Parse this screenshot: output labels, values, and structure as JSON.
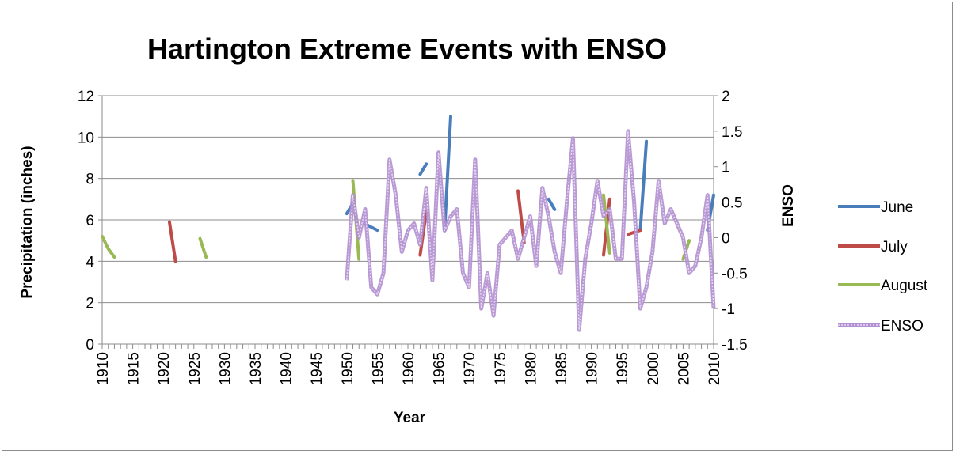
{
  "chart_data": {
    "type": "line",
    "title": "Hartington Extreme Events with ENSO",
    "xlabel": "Year",
    "ylabel_left": "Precipitation (inches)",
    "ylabel_right": "ENSO",
    "xlim": [
      1910,
      2010
    ],
    "ylim_left": [
      0,
      12
    ],
    "ylim_right": [
      -1.5,
      2
    ],
    "x_tick_labels": [
      "1910",
      "1915",
      "1920",
      "1925",
      "1930",
      "1935",
      "1940",
      "1945",
      "1950",
      "1955",
      "1960",
      "1965",
      "1970",
      "1975",
      "1980",
      "1985",
      "1990",
      "1995",
      "2000",
      "2005",
      "2010"
    ],
    "y_left_tick_labels": [
      "0",
      "2",
      "4",
      "6",
      "8",
      "10",
      "12"
    ],
    "y_right_tick_labels": [
      "-1.5",
      "-1",
      "-0.5",
      "0",
      "0.5",
      "1",
      "1.5",
      "2"
    ],
    "grid": "horizontal",
    "legend_position": "right",
    "series": [
      {
        "name": "June",
        "axis": "left",
        "color": "#4a7ebb",
        "segments": [
          [
            [
              1950,
              6.3
            ],
            [
              1951,
              6.8
            ]
          ],
          [
            [
              1953,
              5.8
            ],
            [
              1955,
              5.5
            ]
          ],
          [
            [
              1962,
              8.2
            ],
            [
              1963,
              8.7
            ]
          ],
          [
            [
              1966,
              5.5
            ],
            [
              1967,
              11.0
            ]
          ],
          [
            [
              1983,
              7.0
            ],
            [
              1984,
              6.5
            ]
          ],
          [
            [
              1998,
              5.5
            ],
            [
              1999,
              9.8
            ]
          ],
          [
            [
              2009,
              5.5
            ],
            [
              2010,
              7.2
            ]
          ]
        ]
      },
      {
        "name": "July",
        "axis": "left",
        "color": "#be4b48",
        "segments": [
          [
            [
              1921,
              5.9
            ],
            [
              1922,
              4.0
            ]
          ],
          [
            [
              1962,
              4.3
            ],
            [
              1963,
              6.4
            ]
          ],
          [
            [
              1978,
              7.4
            ],
            [
              1979,
              4.9
            ]
          ],
          [
            [
              1992,
              4.3
            ],
            [
              1993,
              7.0
            ]
          ],
          [
            [
              1996,
              5.3
            ],
            [
              1998,
              5.5
            ]
          ]
        ]
      },
      {
        "name": "August",
        "axis": "left",
        "color": "#98b954",
        "segments": [
          [
            [
              1910,
              5.2
            ],
            [
              1911,
              4.6
            ],
            [
              1912,
              4.2
            ]
          ],
          [
            [
              1926,
              5.1
            ],
            [
              1927,
              4.2
            ]
          ],
          [
            [
              1951,
              7.9
            ],
            [
              1952,
              4.1
            ]
          ],
          [
            [
              1992,
              7.2
            ],
            [
              1993,
              4.4
            ]
          ],
          [
            [
              2005,
              4.1
            ],
            [
              2006,
              5.0
            ]
          ]
        ]
      },
      {
        "name": "ENSO",
        "axis": "right",
        "color": "#b28fd0",
        "x": [
          1950,
          1951,
          1952,
          1953,
          1954,
          1955,
          1956,
          1957,
          1958,
          1959,
          1960,
          1961,
          1962,
          1963,
          1964,
          1965,
          1966,
          1967,
          1968,
          1969,
          1970,
          1971,
          1972,
          1973,
          1974,
          1975,
          1976,
          1977,
          1978,
          1979,
          1980,
          1981,
          1982,
          1983,
          1984,
          1985,
          1986,
          1987,
          1988,
          1989,
          1990,
          1991,
          1992,
          1993,
          1994,
          1995,
          1996,
          1997,
          1998,
          1999,
          2000,
          2001,
          2002,
          2003,
          2004,
          2005,
          2006,
          2007,
          2008,
          2009,
          2010
        ],
        "values": [
          -0.6,
          0.6,
          0.0,
          0.4,
          -0.7,
          -0.8,
          -0.5,
          1.1,
          0.6,
          -0.2,
          0.1,
          0.2,
          -0.1,
          0.7,
          -0.6,
          1.2,
          0.1,
          0.3,
          0.4,
          -0.5,
          -0.7,
          1.1,
          -1.0,
          -0.5,
          -1.1,
          -0.1,
          0.0,
          0.1,
          -0.3,
          0.0,
          0.3,
          -0.4,
          0.7,
          0.3,
          -0.2,
          -0.5,
          0.5,
          1.4,
          -1.3,
          -0.3,
          0.2,
          0.8,
          0.3,
          0.4,
          -0.3,
          -0.3,
          1.5,
          0.5,
          -1.0,
          -0.7,
          -0.2,
          0.8,
          0.2,
          0.4,
          0.2,
          0.0,
          -0.5,
          -0.4,
          0.0,
          0.6,
          -1.0
        ]
      }
    ]
  }
}
